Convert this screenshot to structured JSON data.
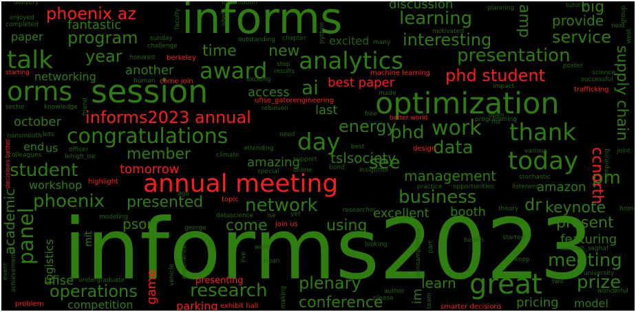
{
  "colors": {
    "background": "#000000",
    "green": "#2e7d0f",
    "dark_green": "#23640b",
    "red": "#ff1a1a",
    "dark_red": "#c81212"
  },
  "words": {
    "informs2023": "informs2023",
    "informs": "informs",
    "session": "session",
    "optimization": "optimization",
    "annual_meeting": "annual meeting",
    "great": "great",
    "congratulations": "congratulations",
    "analytics": "analytics",
    "today": "today",
    "thank": "thank",
    "award": "award",
    "orms": "orms",
    "talk": "talk",
    "day": "day",
    "work": "work",
    "research": "research",
    "operations": "operations",
    "phoenix_az": "phoenix az",
    "informs2023_annual": "informs2023 annual",
    "phd_student": "phd student",
    "best_paper": "best paper",
    "tomorrow": "tomorrow",
    "student": "student",
    "learning": "learning",
    "presentation": "presentation",
    "interesting": "interesting",
    "program": "program",
    "service": "service",
    "year": "year",
    "time": "time",
    "new": "new",
    "ai": "ai",
    "energy": "energy",
    "phd": "phd",
    "data": "data",
    "see": "see",
    "management": "management",
    "business": "business",
    "network": "network",
    "member": "member",
    "presented": "presented",
    "phoenix": "phoenix",
    "panel": "panel",
    "meeting": "meeting",
    "prize": "prize",
    "pm": "pm",
    "present": "present",
    "featuring": "featuring",
    "conference": "conference",
    "plenary": "plenary",
    "learn": "learn",
    "amazon": "amazon",
    "dr": "dr",
    "keynote": "keynote",
    "tslsociety": "tslsociety",
    "amazing": "amazing",
    "come": "come",
    "using": "using",
    "psor": "psor",
    "competition": "competition",
    "pricing": "pricing",
    "model": "model",
    "excellent": "excellent",
    "booth": "booth",
    "workshop": "workshop",
    "october": "october",
    "end": "end",
    "us": "us",
    "access": "access",
    "last": "last",
    "another": "another",
    "networking": "networking",
    "paper": "paper",
    "discussion": "discussion",
    "fantastic": "fantastic",
    "provide": "provide",
    "big": "big",
    "amp": "amp",
    "supply_chain": "supply chain",
    "ccnorth": "ccnorth",
    "academic": "academic",
    "logistics": "logistics",
    "ufise": "ufise",
    "mit": "mit",
    "game": "game",
    "im": "im",
    "parking": "parking",
    "presenting": "presenting",
    "exhibit_hall": "exhibit hall",
    "smarter_decisions": "smarter decisions",
    "problem": "problem",
    "highlight": "highlight",
    "decisions_better": "decisions better",
    "topic": "topic",
    "join_us": "join us",
    "ufise_gatorengineering": "ufise_gatorengineering",
    "machine_learning": "machine learning",
    "better_world": "better world",
    "design": "design",
    "trafficking": "trafficking",
    "berkeley": "berkeley",
    "come_join": "come join",
    "starting": "starting",
    "excited": "excited",
    "completed": "completed",
    "enjoyed": "enjoyed",
    "delivery": "delivery",
    "faculty": "faculty",
    "information": "information",
    "tutorial": "tutorial",
    "planning": "planning",
    "motivated": "motivated",
    "next": "next",
    "group": "group",
    "west": "west",
    "sunday": "sunday",
    "challenge": "challenge",
    "honored": "honored",
    "outstanding": "outstanding",
    "chapter": "chapter",
    "python": "python",
    "photo": "photo",
    "many": "many",
    "stop": "stop",
    "results": "results",
    "human": "human",
    "exciting": "exciting",
    "made": "made",
    "free": "free",
    "impact": "impact",
    "science": "science",
    "successful": "successful",
    "poster": "poster",
    "sector": "sector",
    "knowledge": "knowledge",
    "friend": "friend",
    "robinson": "robinson",
    "open": "open",
    "nsf": "nsf",
    "programming": "programming",
    "nonsmooth": "nonsmooth",
    "lets": "lets",
    "officer": "officer",
    "lehigh_ise": "lehigh_ise",
    "colleagues": "colleagues",
    "climate": "climate",
    "attending": "attending",
    "need": "need",
    "support": "support",
    "best": "best",
    "bond": "bond",
    "insightful": "insightful",
    "special": "special",
    "online": "online",
    "various": "various",
    "joint": "joint",
    "computing": "computing",
    "stochastic": "stochastic",
    "practice": "practice",
    "opportunities": "opportunities",
    "listeners": "listeners",
    "theory": "theory",
    "ago": "ago",
    "home": "home",
    "modeling": "modeling",
    "george": "george",
    "datascience": "datascience",
    "ise": "ise",
    "yet": "yet",
    "researcher": "researcher",
    "health": "health",
    "started": "started",
    "soroush_saghaf": "soroush_saghaf",
    "keep": "keep",
    "week": "week",
    "looking": "looking",
    "urban": "urban",
    "live": "live",
    "experience": "experience",
    "vehicle": "vehicle",
    "undergraduate": "undergraduate",
    "author": "author",
    "please": "please",
    "part": "part",
    "annoampbellow": "annoampbellow",
    "two": "two",
    "university": "university",
    "wonderful": "wonderful",
    "event": "event",
    "achievements": "achievements",
    "team": "team",
    "making": "making"
  }
}
